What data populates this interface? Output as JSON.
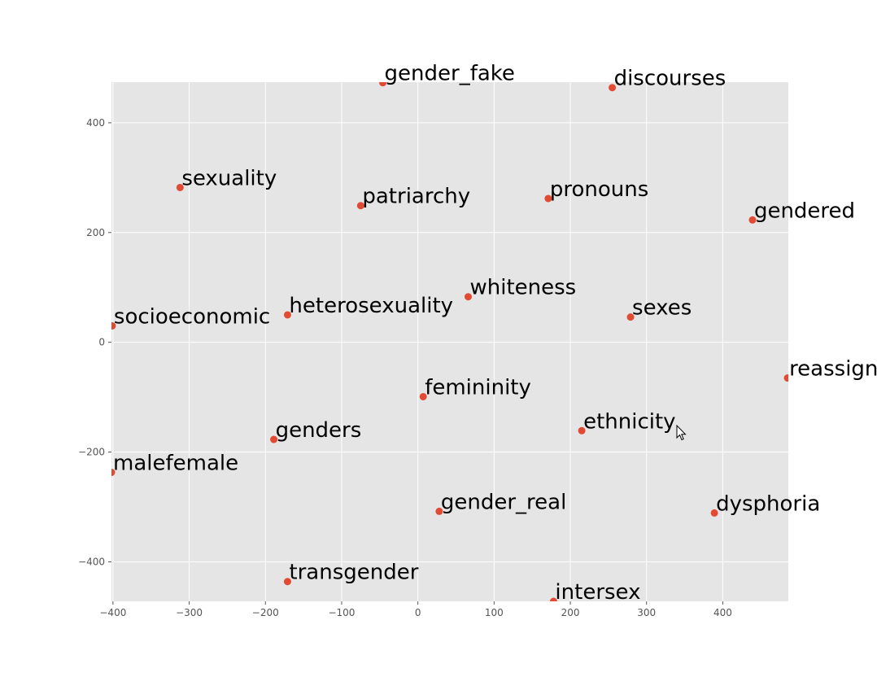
{
  "chart_data": {
    "type": "scatter",
    "title": "",
    "xlabel": "",
    "ylabel": "",
    "xlim": [
      -402,
      486
    ],
    "ylim": [
      -472,
      474
    ],
    "xticks": [
      -400,
      -300,
      -200,
      -100,
      0,
      100,
      200,
      300,
      400
    ],
    "yticks": [
      -400,
      -200,
      0,
      200,
      400
    ],
    "grid": true,
    "colors": {
      "background": "#e5e5e5",
      "grid": "#ffffff",
      "point": "#e24a33"
    },
    "points": [
      {
        "label": "gender_fake",
        "x": -46,
        "y": 473
      },
      {
        "label": "discourses",
        "x": 255,
        "y": 464
      },
      {
        "label": "sexuality",
        "x": -312,
        "y": 282
      },
      {
        "label": "patriarchy",
        "x": -75,
        "y": 249
      },
      {
        "label": "pronouns",
        "x": 171,
        "y": 262
      },
      {
        "label": "gendered",
        "x": 439,
        "y": 223
      },
      {
        "label": "whiteness",
        "x": 66,
        "y": 83
      },
      {
        "label": "heterosexuality",
        "x": -171,
        "y": 50
      },
      {
        "label": "socioeconomic",
        "x": -401,
        "y": 30
      },
      {
        "label": "sexes",
        "x": 279,
        "y": 46
      },
      {
        "label": "reassignment",
        "x": 485,
        "y": -65
      },
      {
        "label": "femininity",
        "x": 7,
        "y": -99
      },
      {
        "label": "ethnicity",
        "x": 215,
        "y": -161
      },
      {
        "label": "genders",
        "x": -189,
        "y": -177
      },
      {
        "label": "malefemale",
        "x": -402,
        "y": -237
      },
      {
        "label": "gender_real",
        "x": 28,
        "y": -308
      },
      {
        "label": "dysphoria",
        "x": 389,
        "y": -311
      },
      {
        "label": "transgender",
        "x": -171,
        "y": -436
      },
      {
        "label": "intersex",
        "x": 178,
        "y": -472
      }
    ]
  },
  "ui": {
    "cursor_icon": "mouse-pointer-icon"
  }
}
